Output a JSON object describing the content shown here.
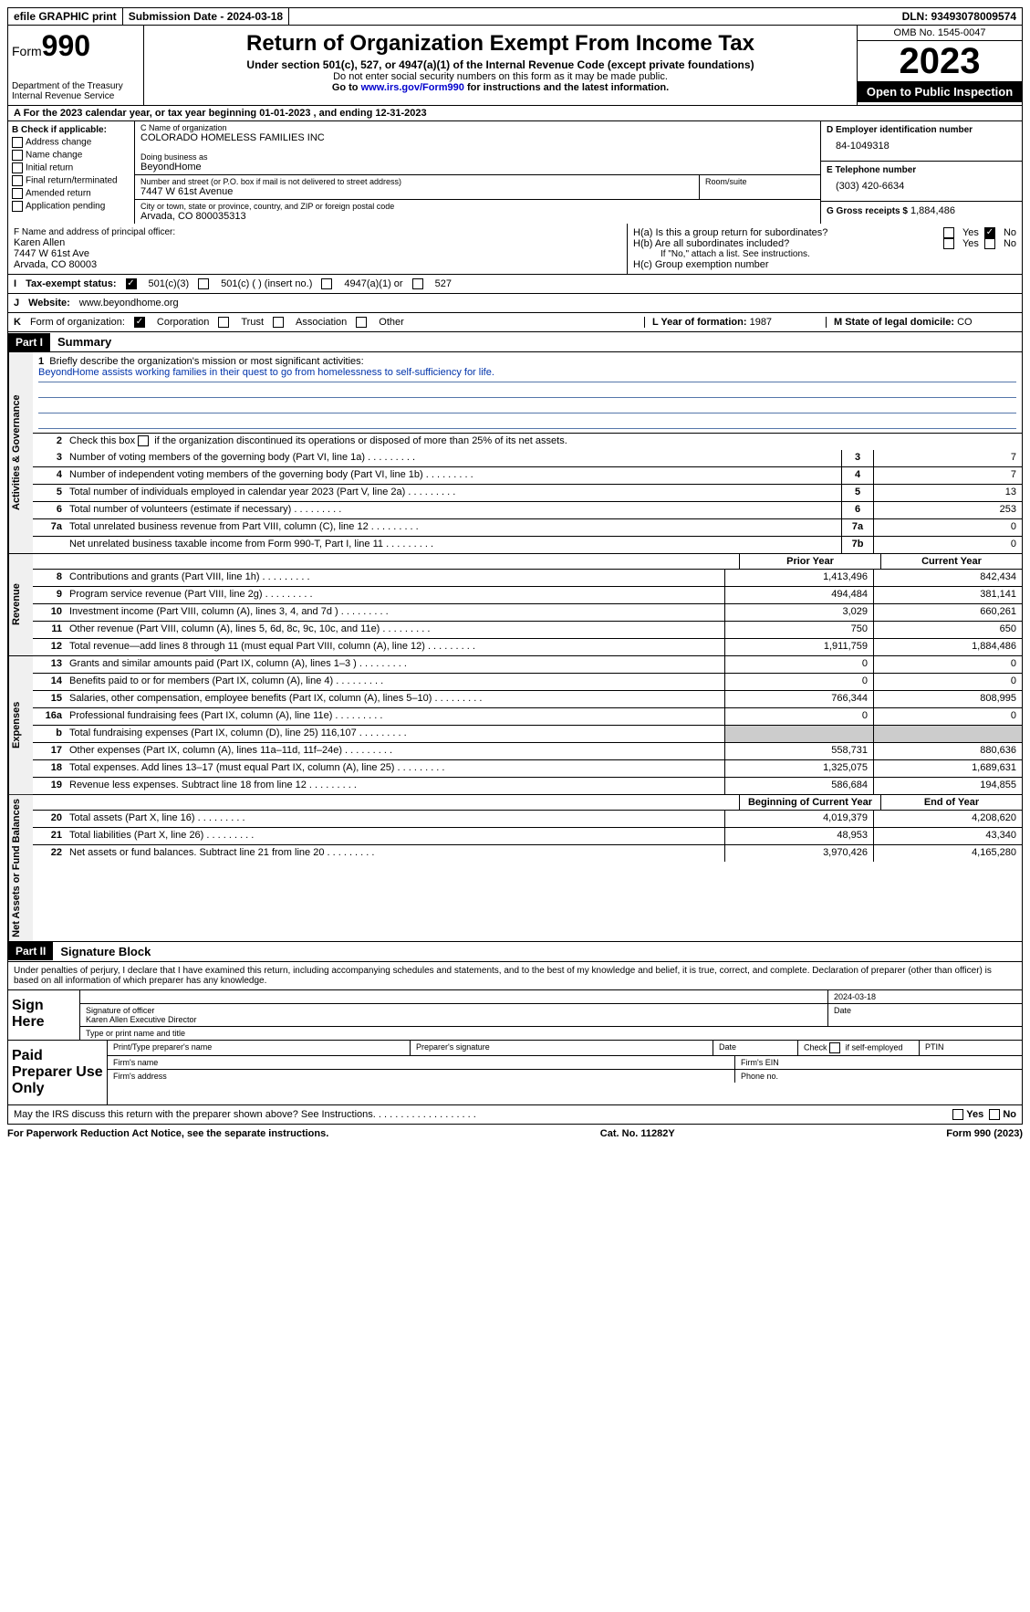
{
  "topbar": {
    "efile": "efile GRAPHIC print",
    "submission": "Submission Date - 2024-03-18",
    "dln": "DLN: 93493078009574"
  },
  "header": {
    "form_label": "Form",
    "form_number": "990",
    "dept": "Department of the Treasury Internal Revenue Service",
    "title": "Return of Organization Exempt From Income Tax",
    "subtitle": "Under section 501(c), 527, or 4947(a)(1) of the Internal Revenue Code (except private foundations)",
    "note1": "Do not enter social security numbers on this form as it may be made public.",
    "note2": "Go to www.irs.gov/Form990 for instructions and the latest information.",
    "link": "www.irs.gov/Form990",
    "omb": "OMB No. 1545-0047",
    "year": "2023",
    "open_public": "Open to Public Inspection"
  },
  "line_a": "A For the 2023 calendar year, or tax year beginning 01-01-2023   , and ending 12-31-2023",
  "box_b": {
    "label": "B Check if applicable:",
    "items": [
      "Address change",
      "Name change",
      "Initial return",
      "Final return/terminated",
      "Amended return",
      "Application pending"
    ]
  },
  "box_c": {
    "name_label": "C Name of organization",
    "name": "COLORADO HOMELESS FAMILIES INC",
    "dba_label": "Doing business as",
    "dba": "BeyondHome",
    "street_label": "Number and street (or P.O. box if mail is not delivered to street address)",
    "street": "7447 W 61st Avenue",
    "room_label": "Room/suite",
    "city_label": "City or town, state or province, country, and ZIP or foreign postal code",
    "city": "Arvada, CO  800035313"
  },
  "box_d": {
    "label": "D Employer identification number",
    "value": "84-1049318"
  },
  "box_e": {
    "label": "E Telephone number",
    "value": "(303) 420-6634"
  },
  "box_g": {
    "label": "G Gross receipts $",
    "value": "1,884,486"
  },
  "box_f": {
    "label": "F  Name and address of principal officer:",
    "name": "Karen Allen",
    "addr1": "7447 W 61st Ave",
    "addr2": "Arvada, CO  80003"
  },
  "box_h": {
    "ha": "H(a)  Is this a group return for subordinates?",
    "hb": "H(b)  Are all subordinates included?",
    "hb_note": "If \"No,\" attach a list. See instructions.",
    "hc": "H(c)  Group exemption number",
    "yes": "Yes",
    "no": "No"
  },
  "tax_status": {
    "label_i": "I",
    "label": "Tax-exempt status:",
    "opt1": "501(c)(3)",
    "opt2": "501(c) (  ) (insert no.)",
    "opt3": "4947(a)(1) or",
    "opt4": "527"
  },
  "website": {
    "label_j": "J",
    "label": "Website:",
    "value": "www.beyondhome.org"
  },
  "line_k": {
    "label_k": "K",
    "label": "Form of organization:",
    "opts": [
      "Corporation",
      "Trust",
      "Association",
      "Other"
    ],
    "l_label": "L Year of formation:",
    "l_value": "1987",
    "m_label": "M State of legal domicile:",
    "m_value": "CO"
  },
  "part1": {
    "header": "Part I",
    "title": "Summary",
    "q1_label": "Briefly describe the organization's mission or most significant activities:",
    "q1_text": "BeyondHome assists working families in their quest to go from homelessness to self-sufficiency for life.",
    "q2": "Check this box      if the organization discontinued its operations or disposed of more than 25% of its net assets.",
    "rows_gov": [
      {
        "n": "3",
        "d": "Number of voting members of the governing body (Part VI, line 1a)",
        "box": "3",
        "v": "7"
      },
      {
        "n": "4",
        "d": "Number of independent voting members of the governing body (Part VI, line 1b)",
        "box": "4",
        "v": "7"
      },
      {
        "n": "5",
        "d": "Total number of individuals employed in calendar year 2023 (Part V, line 2a)",
        "box": "5",
        "v": "13"
      },
      {
        "n": "6",
        "d": "Total number of volunteers (estimate if necessary)",
        "box": "6",
        "v": "253"
      },
      {
        "n": "7a",
        "d": "Total unrelated business revenue from Part VIII, column (C), line 12",
        "box": "7a",
        "v": "0"
      },
      {
        "n": "",
        "d": "Net unrelated business taxable income from Form 990-T, Part I, line 11",
        "box": "7b",
        "v": "0"
      }
    ],
    "col_prior": "Prior Year",
    "col_current": "Current Year",
    "rows_rev": [
      {
        "n": "8",
        "d": "Contributions and grants (Part VIII, line 1h)",
        "py": "1,413,496",
        "cy": "842,434"
      },
      {
        "n": "9",
        "d": "Program service revenue (Part VIII, line 2g)",
        "py": "494,484",
        "cy": "381,141"
      },
      {
        "n": "10",
        "d": "Investment income (Part VIII, column (A), lines 3, 4, and 7d )",
        "py": "3,029",
        "cy": "660,261"
      },
      {
        "n": "11",
        "d": "Other revenue (Part VIII, column (A), lines 5, 6d, 8c, 9c, 10c, and 11e)",
        "py": "750",
        "cy": "650"
      },
      {
        "n": "12",
        "d": "Total revenue—add lines 8 through 11 (must equal Part VIII, column (A), line 12)",
        "py": "1,911,759",
        "cy": "1,884,486"
      }
    ],
    "rows_exp": [
      {
        "n": "13",
        "d": "Grants and similar amounts paid (Part IX, column (A), lines 1–3 )",
        "py": "0",
        "cy": "0"
      },
      {
        "n": "14",
        "d": "Benefits paid to or for members (Part IX, column (A), line 4)",
        "py": "0",
        "cy": "0"
      },
      {
        "n": "15",
        "d": "Salaries, other compensation, employee benefits (Part IX, column (A), lines 5–10)",
        "py": "766,344",
        "cy": "808,995"
      },
      {
        "n": "16a",
        "d": "Professional fundraising fees (Part IX, column (A), line 11e)",
        "py": "0",
        "cy": "0"
      },
      {
        "n": "b",
        "d": "Total fundraising expenses (Part IX, column (D), line 25) 116,107",
        "py": "",
        "cy": "",
        "shaded": true
      },
      {
        "n": "17",
        "d": "Other expenses (Part IX, column (A), lines 11a–11d, 11f–24e)",
        "py": "558,731",
        "cy": "880,636"
      },
      {
        "n": "18",
        "d": "Total expenses. Add lines 13–17 (must equal Part IX, column (A), line 25)",
        "py": "1,325,075",
        "cy": "1,689,631"
      },
      {
        "n": "19",
        "d": "Revenue less expenses. Subtract line 18 from line 12",
        "py": "586,684",
        "cy": "194,855"
      }
    ],
    "col_begin": "Beginning of Current Year",
    "col_end": "End of Year",
    "rows_net": [
      {
        "n": "20",
        "d": "Total assets (Part X, line 16)",
        "py": "4,019,379",
        "cy": "4,208,620"
      },
      {
        "n": "21",
        "d": "Total liabilities (Part X, line 26)",
        "py": "48,953",
        "cy": "43,340"
      },
      {
        "n": "22",
        "d": "Net assets or fund balances. Subtract line 21 from line 20",
        "py": "3,970,426",
        "cy": "4,165,280"
      }
    ],
    "side_gov": "Activities & Governance",
    "side_rev": "Revenue",
    "side_exp": "Expenses",
    "side_net": "Net Assets or Fund Balances"
  },
  "part2": {
    "header": "Part II",
    "title": "Signature Block",
    "text": "Under penalties of perjury, I declare that I have examined this return, including accompanying schedules and statements, and to the best of my knowledge and belief, it is true, correct, and complete. Declaration of preparer (other than officer) is based on all information of which preparer has any knowledge.",
    "sign_here": "Sign Here",
    "sig_officer": "Signature of officer",
    "officer_name": "Karen Allen  Executive Director",
    "type_name": "Type or print name and title",
    "date": "Date",
    "date_val": "2024-03-18",
    "paid_prep": "Paid Preparer Use Only",
    "prep_name": "Print/Type preparer's name",
    "prep_sig": "Preparer's signature",
    "check_self": "Check       if self-employed",
    "ptin": "PTIN",
    "firm_name": "Firm's name",
    "firm_ein": "Firm's EIN",
    "firm_addr": "Firm's address",
    "phone": "Phone no."
  },
  "footer": {
    "discuss": "May the IRS discuss this return with the preparer shown above? See Instructions.",
    "yes": "Yes",
    "no": "No",
    "paperwork": "For Paperwork Reduction Act Notice, see the separate instructions.",
    "cat": "Cat. No. 11282Y",
    "form": "Form 990 (2023)"
  }
}
